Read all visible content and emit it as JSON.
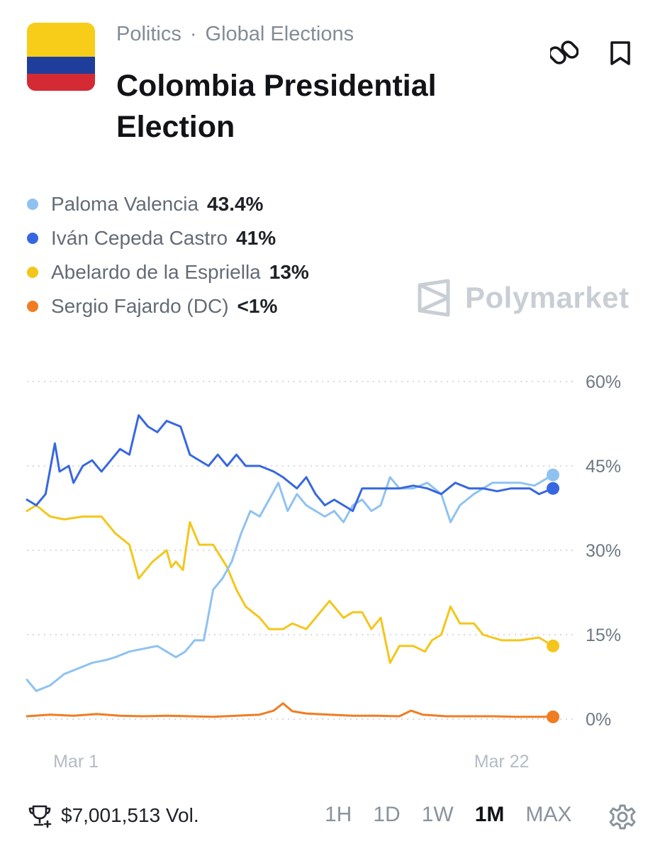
{
  "header": {
    "breadcrumb": [
      "Politics",
      "Global Elections"
    ],
    "separator": "·",
    "title": "Colombia Presidential Election",
    "flag_colors": [
      "#f7cd1a",
      "#1f3d9a",
      "#d42a34"
    ]
  },
  "legend": [
    {
      "name": "Paloma Valencia",
      "pct": "43.4%",
      "color": "#8fc2f1"
    },
    {
      "name": "Iván Cepeda Castro",
      "pct": "41%",
      "color": "#3767e0"
    },
    {
      "name": "Abelardo de la Espriella",
      "pct": "13%",
      "color": "#f4c61c"
    },
    {
      "name": "Sergio Fajardo (DC)",
      "pct": "<1%",
      "color": "#f07d22"
    }
  ],
  "watermark": "Polymarket",
  "chart_data": {
    "type": "line",
    "ylim": [
      0,
      60
    ],
    "yticks": [
      0,
      15,
      30,
      45,
      60
    ],
    "ytick_labels": [
      "0%",
      "15%",
      "30%",
      "45%",
      "60%"
    ],
    "x_ticks": [
      {
        "label": "Mar 1",
        "t": 0.05
      },
      {
        "label": "Mar 22",
        "t": 0.85
      }
    ],
    "grid": true,
    "series": [
      {
        "name": "Abelardo de la Espriella",
        "color": "#f4c61c",
        "points": [
          [
            0,
            37
          ],
          [
            0.02,
            38
          ],
          [
            0.05,
            36
          ],
          [
            0.08,
            35.5
          ],
          [
            0.12,
            36
          ],
          [
            0.16,
            36
          ],
          [
            0.19,
            33
          ],
          [
            0.22,
            31
          ],
          [
            0.24,
            25
          ],
          [
            0.27,
            28
          ],
          [
            0.3,
            30
          ],
          [
            0.31,
            27
          ],
          [
            0.32,
            28
          ],
          [
            0.335,
            26.5
          ],
          [
            0.35,
            35
          ],
          [
            0.37,
            31
          ],
          [
            0.4,
            31
          ],
          [
            0.43,
            27
          ],
          [
            0.45,
            23
          ],
          [
            0.47,
            20
          ],
          [
            0.5,
            18
          ],
          [
            0.52,
            16
          ],
          [
            0.55,
            16
          ],
          [
            0.57,
            17
          ],
          [
            0.6,
            16
          ],
          [
            0.63,
            19
          ],
          [
            0.65,
            21
          ],
          [
            0.68,
            18
          ],
          [
            0.7,
            19
          ],
          [
            0.72,
            19
          ],
          [
            0.74,
            16
          ],
          [
            0.76,
            18
          ],
          [
            0.78,
            10
          ],
          [
            0.8,
            13
          ],
          [
            0.83,
            13
          ],
          [
            0.855,
            12
          ],
          [
            0.87,
            14
          ],
          [
            0.89,
            15
          ],
          [
            0.91,
            20
          ],
          [
            0.93,
            17
          ],
          [
            0.96,
            17
          ],
          [
            0.98,
            15
          ],
          [
            1.0,
            14.5
          ],
          [
            1.02,
            14
          ],
          [
            1.06,
            14
          ],
          [
            1.1,
            14.5
          ],
          [
            1.13,
            13
          ]
        ]
      },
      {
        "name": "Paloma Valencia",
        "color": "#8fc2f1",
        "points": [
          [
            0,
            7
          ],
          [
            0.02,
            5
          ],
          [
            0.05,
            6
          ],
          [
            0.08,
            8
          ],
          [
            0.11,
            9
          ],
          [
            0.14,
            10
          ],
          [
            0.17,
            10.5
          ],
          [
            0.19,
            11
          ],
          [
            0.22,
            12
          ],
          [
            0.25,
            12.5
          ],
          [
            0.28,
            13
          ],
          [
            0.3,
            12
          ],
          [
            0.32,
            11
          ],
          [
            0.34,
            12
          ],
          [
            0.36,
            14
          ],
          [
            0.38,
            14
          ],
          [
            0.4,
            23
          ],
          [
            0.42,
            25
          ],
          [
            0.44,
            28
          ],
          [
            0.46,
            33
          ],
          [
            0.48,
            37
          ],
          [
            0.5,
            36
          ],
          [
            0.52,
            39
          ],
          [
            0.54,
            42
          ],
          [
            0.56,
            37
          ],
          [
            0.58,
            40
          ],
          [
            0.6,
            38
          ],
          [
            0.62,
            37
          ],
          [
            0.64,
            36
          ],
          [
            0.66,
            37
          ],
          [
            0.68,
            35
          ],
          [
            0.7,
            38
          ],
          [
            0.72,
            39
          ],
          [
            0.74,
            37
          ],
          [
            0.76,
            38
          ],
          [
            0.78,
            43
          ],
          [
            0.8,
            41
          ],
          [
            0.83,
            41
          ],
          [
            0.86,
            42
          ],
          [
            0.89,
            40
          ],
          [
            0.91,
            35
          ],
          [
            0.93,
            38
          ],
          [
            0.96,
            40
          ],
          [
            0.98,
            41
          ],
          [
            1.0,
            42
          ],
          [
            1.03,
            42
          ],
          [
            1.06,
            42
          ],
          [
            1.09,
            41.5
          ],
          [
            1.13,
            43.4
          ]
        ]
      },
      {
        "name": "Iván Cepeda Castro",
        "color": "#3767e0",
        "points": [
          [
            0,
            39
          ],
          [
            0.02,
            38
          ],
          [
            0.04,
            40
          ],
          [
            0.06,
            49
          ],
          [
            0.07,
            44
          ],
          [
            0.09,
            45
          ],
          [
            0.1,
            42
          ],
          [
            0.12,
            45
          ],
          [
            0.14,
            46
          ],
          [
            0.16,
            44
          ],
          [
            0.18,
            46
          ],
          [
            0.2,
            48
          ],
          [
            0.22,
            47
          ],
          [
            0.24,
            54
          ],
          [
            0.26,
            52
          ],
          [
            0.28,
            51
          ],
          [
            0.3,
            53
          ],
          [
            0.33,
            52
          ],
          [
            0.35,
            47
          ],
          [
            0.37,
            46
          ],
          [
            0.39,
            45
          ],
          [
            0.41,
            47
          ],
          [
            0.43,
            45
          ],
          [
            0.45,
            47
          ],
          [
            0.47,
            45
          ],
          [
            0.5,
            45
          ],
          [
            0.53,
            44
          ],
          [
            0.55,
            43
          ],
          [
            0.58,
            41
          ],
          [
            0.6,
            43
          ],
          [
            0.62,
            40
          ],
          [
            0.64,
            38
          ],
          [
            0.66,
            39
          ],
          [
            0.68,
            38
          ],
          [
            0.7,
            37
          ],
          [
            0.72,
            41
          ],
          [
            0.74,
            41
          ],
          [
            0.77,
            41
          ],
          [
            0.8,
            41
          ],
          [
            0.83,
            41.5
          ],
          [
            0.86,
            41
          ],
          [
            0.89,
            40
          ],
          [
            0.92,
            42
          ],
          [
            0.95,
            41
          ],
          [
            0.98,
            41
          ],
          [
            1.01,
            40.5
          ],
          [
            1.04,
            41
          ],
          [
            1.08,
            41
          ],
          [
            1.1,
            40
          ],
          [
            1.13,
            41
          ]
        ]
      },
      {
        "name": "Sergio Fajardo (DC)",
        "color": "#f07d22",
        "points": [
          [
            0,
            0.5
          ],
          [
            0.05,
            0.8
          ],
          [
            0.1,
            0.6
          ],
          [
            0.15,
            0.9
          ],
          [
            0.2,
            0.6
          ],
          [
            0.25,
            0.5
          ],
          [
            0.3,
            0.6
          ],
          [
            0.35,
            0.5
          ],
          [
            0.4,
            0.4
          ],
          [
            0.45,
            0.6
          ],
          [
            0.5,
            0.8
          ],
          [
            0.53,
            1.5
          ],
          [
            0.55,
            2.8
          ],
          [
            0.57,
            1.4
          ],
          [
            0.6,
            1
          ],
          [
            0.65,
            0.8
          ],
          [
            0.7,
            0.6
          ],
          [
            0.75,
            0.6
          ],
          [
            0.8,
            0.5
          ],
          [
            0.825,
            1.5
          ],
          [
            0.85,
            0.8
          ],
          [
            0.9,
            0.5
          ],
          [
            0.95,
            0.5
          ],
          [
            1.0,
            0.5
          ],
          [
            1.05,
            0.4
          ],
          [
            1.1,
            0.4
          ],
          [
            1.13,
            0.4
          ]
        ]
      }
    ]
  },
  "footer": {
    "volume": "$7,001,513 Vol.",
    "ranges": [
      "1H",
      "1D",
      "1W",
      "1M",
      "MAX"
    ],
    "active_range": "1M"
  }
}
